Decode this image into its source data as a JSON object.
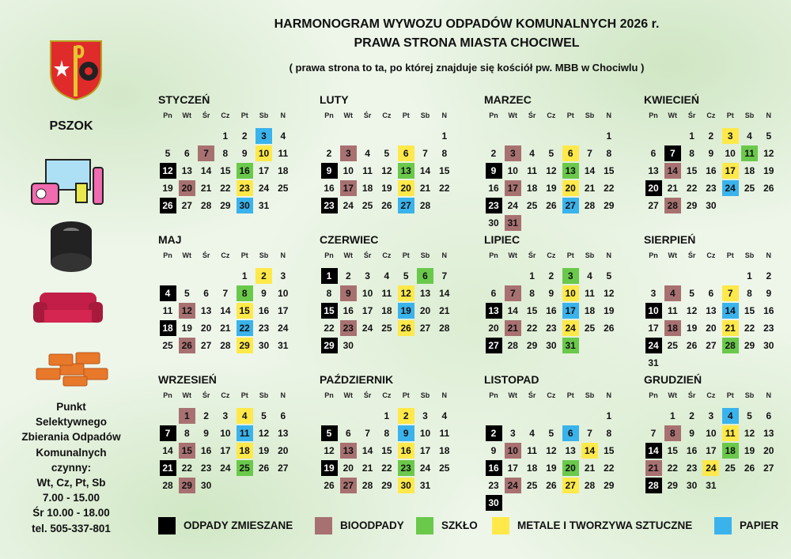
{
  "header": {
    "title": "HARMONOGRAM WYWOZU ODPADÓW KOMUNALNYCH 2026 r.",
    "subtitle": "PRAWA STRONA MIASTA CHOCIWEL",
    "note": "( prawa strona to ta, po której znajduje się kościół pw. MBB w Chociwlu )"
  },
  "pszok": {
    "title": "PSZOK",
    "info": [
      "Punkt",
      "Selektywnego",
      "Zbierania Odpadów",
      "Komunalnych",
      "czynny:",
      "Wt, Cz, Pt, Sb",
      "7.00 - 15.00",
      "Śr 10.00 - 18.00",
      "tel. 505-337-801"
    ]
  },
  "weekdays": [
    "Pn",
    "Wt",
    "Śr",
    "Cz",
    "Pt",
    "Sb",
    "N"
  ],
  "legend": [
    {
      "label": "ODPADY ZMIESZANE",
      "color": "#000000"
    },
    {
      "label": "BIOODPADY",
      "color": "#a87171"
    },
    {
      "label": "SZKŁO",
      "color": "#6ac94b"
    },
    {
      "label": "METALE I TWORZYWA SZTUCZNE",
      "color": "#ffe94a"
    },
    {
      "label": "PAPIER",
      "color": "#3ab3ec"
    }
  ],
  "months": [
    {
      "name": "STYCZEŃ",
      "weeks": [
        [
          null,
          null,
          null,
          1,
          2,
          {
            "day": 3,
            "type": 4
          },
          4
        ],
        [
          5,
          6,
          {
            "day": 7,
            "type": 1
          },
          8,
          9,
          {
            "day": 10,
            "type": 3
          },
          11
        ],
        [
          {
            "day": 12,
            "type": 0
          },
          13,
          14,
          15,
          {
            "day": 16,
            "type": 2
          },
          17,
          18
        ],
        [
          19,
          {
            "day": 20,
            "type": 1
          },
          21,
          22,
          {
            "day": 23,
            "type": 3
          },
          24,
          25
        ],
        [
          {
            "day": 26,
            "type": 0
          },
          27,
          28,
          29,
          {
            "day": 30,
            "type": 4
          },
          31
        ]
      ]
    },
    {
      "name": "LUTY",
      "weeks": [
        [
          null,
          null,
          null,
          null,
          null,
          null,
          1
        ],
        [
          2,
          {
            "day": 3,
            "type": 1
          },
          4,
          5,
          {
            "day": 6,
            "type": 3
          },
          7,
          8
        ],
        [
          {
            "day": 9,
            "type": 0
          },
          10,
          11,
          12,
          {
            "day": 13,
            "type": 2
          },
          14,
          15
        ],
        [
          16,
          {
            "day": 17,
            "type": 1
          },
          18,
          19,
          {
            "day": 20,
            "type": 3
          },
          21,
          22
        ],
        [
          {
            "day": 23,
            "type": 0
          },
          24,
          25,
          26,
          {
            "day": 27,
            "type": 4
          },
          28
        ]
      ]
    },
    {
      "name": "MARZEC",
      "weeks": [
        [
          null,
          null,
          null,
          null,
          null,
          null,
          1
        ],
        [
          2,
          {
            "day": 3,
            "type": 1
          },
          4,
          5,
          {
            "day": 6,
            "type": 3
          },
          7,
          8
        ],
        [
          {
            "day": 9,
            "type": 0
          },
          10,
          11,
          12,
          {
            "day": 13,
            "type": 2
          },
          14,
          15
        ],
        [
          16,
          {
            "day": 17,
            "type": 1
          },
          18,
          19,
          {
            "day": 20,
            "type": 3
          },
          21,
          22
        ],
        [
          {
            "day": 23,
            "type": 0
          },
          24,
          25,
          26,
          {
            "day": 27,
            "type": 4
          },
          28,
          29
        ],
        [
          30,
          {
            "day": 31,
            "type": 1
          }
        ]
      ]
    },
    {
      "name": "KWIECIEŃ",
      "weeks": [
        [
          null,
          null,
          1,
          2,
          {
            "day": 3,
            "type": 3
          },
          4,
          5
        ],
        [
          6,
          {
            "day": 7,
            "type": 0
          },
          8,
          9,
          10,
          {
            "day": 11,
            "type": 2
          },
          12
        ],
        [
          13,
          {
            "day": 14,
            "type": 1
          },
          15,
          16,
          {
            "day": 17,
            "type": 3
          },
          18,
          19
        ],
        [
          {
            "day": 20,
            "type": 0
          },
          21,
          22,
          23,
          {
            "day": 24,
            "type": 4
          },
          25,
          26
        ],
        [
          27,
          {
            "day": 28,
            "type": 1
          },
          29,
          30
        ]
      ]
    },
    {
      "name": "MAJ",
      "weeks": [
        [
          null,
          null,
          null,
          null,
          1,
          {
            "day": 2,
            "type": 3
          },
          3
        ],
        [
          {
            "day": 4,
            "type": 0
          },
          5,
          6,
          7,
          {
            "day": 8,
            "type": 2
          },
          9,
          10
        ],
        [
          11,
          {
            "day": 12,
            "type": 1
          },
          13,
          14,
          {
            "day": 15,
            "type": 3
          },
          16,
          17
        ],
        [
          {
            "day": 18,
            "type": 0
          },
          19,
          20,
          21,
          {
            "day": 22,
            "type": 4
          },
          23,
          24
        ],
        [
          25,
          {
            "day": 26,
            "type": 1
          },
          27,
          28,
          {
            "day": 29,
            "type": 3
          },
          30,
          31
        ]
      ]
    },
    {
      "name": "CZERWIEC",
      "weeks": [
        [
          {
            "day": 1,
            "type": 0
          },
          2,
          3,
          4,
          5,
          {
            "day": 6,
            "type": 2
          },
          7
        ],
        [
          8,
          {
            "day": 9,
            "type": 1
          },
          10,
          11,
          {
            "day": 12,
            "type": 3
          },
          13,
          14
        ],
        [
          {
            "day": 15,
            "type": 0
          },
          16,
          17,
          18,
          {
            "day": 19,
            "type": 4
          },
          20,
          21
        ],
        [
          22,
          {
            "day": 23,
            "type": 1
          },
          24,
          25,
          {
            "day": 26,
            "type": 3
          },
          27,
          28
        ],
        [
          {
            "day": 29,
            "type": 0
          },
          30
        ]
      ]
    },
    {
      "name": "LIPIEC",
      "weeks": [
        [
          null,
          null,
          1,
          2,
          {
            "day": 3,
            "type": 2
          },
          4,
          5
        ],
        [
          6,
          {
            "day": 7,
            "type": 1
          },
          8,
          9,
          {
            "day": 10,
            "type": 3
          },
          11,
          12
        ],
        [
          {
            "day": 13,
            "type": 0
          },
          14,
          15,
          16,
          {
            "day": 17,
            "type": 4
          },
          18,
          19
        ],
        [
          20,
          {
            "day": 21,
            "type": 1
          },
          22,
          23,
          {
            "day": 24,
            "type": 3
          },
          25,
          26
        ],
        [
          {
            "day": 27,
            "type": 0
          },
          28,
          29,
          30,
          {
            "day": 31,
            "type": 2
          }
        ]
      ]
    },
    {
      "name": "SIERPIEŃ",
      "weeks": [
        [
          null,
          null,
          null,
          null,
          null,
          1,
          2
        ],
        [
          3,
          {
            "day": 4,
            "type": 1
          },
          5,
          6,
          {
            "day": 7,
            "type": 3
          },
          8,
          9
        ],
        [
          {
            "day": 10,
            "type": 0
          },
          11,
          12,
          13,
          {
            "day": 14,
            "type": 4
          },
          15,
          16
        ],
        [
          17,
          {
            "day": 18,
            "type": 1
          },
          19,
          20,
          {
            "day": 21,
            "type": 3
          },
          22,
          23
        ],
        [
          {
            "day": 24,
            "type": 0
          },
          25,
          26,
          27,
          {
            "day": 28,
            "type": 2
          },
          29,
          30
        ],
        [
          31
        ]
      ]
    },
    {
      "name": "WRZESIEŃ",
      "weeks": [
        [
          null,
          {
            "day": 1,
            "type": 1
          },
          2,
          3,
          {
            "day": 4,
            "type": 3
          },
          5,
          6
        ],
        [
          {
            "day": 7,
            "type": 0
          },
          8,
          9,
          10,
          {
            "day": 11,
            "type": 4
          },
          12,
          13
        ],
        [
          14,
          {
            "day": 15,
            "type": 1
          },
          16,
          17,
          {
            "day": 18,
            "type": 3
          },
          19,
          20
        ],
        [
          {
            "day": 21,
            "type": 0
          },
          22,
          23,
          24,
          {
            "day": 25,
            "type": 2
          },
          26,
          27
        ],
        [
          28,
          {
            "day": 29,
            "type": 1
          },
          30
        ]
      ]
    },
    {
      "name": "PAŹDZIERNIK",
      "weeks": [
        [
          null,
          null,
          null,
          1,
          {
            "day": 2,
            "type": 3
          },
          3,
          4
        ],
        [
          {
            "day": 5,
            "type": 0
          },
          6,
          7,
          8,
          {
            "day": 9,
            "type": 4
          },
          10,
          11
        ],
        [
          12,
          {
            "day": 13,
            "type": 1
          },
          14,
          15,
          {
            "day": 16,
            "type": 3
          },
          17,
          18
        ],
        [
          {
            "day": 19,
            "type": 0
          },
          20,
          21,
          22,
          {
            "day": 23,
            "type": 2
          },
          24,
          25
        ],
        [
          26,
          {
            "day": 27,
            "type": 1
          },
          28,
          29,
          {
            "day": 30,
            "type": 3
          },
          31
        ]
      ]
    },
    {
      "name": "LISTOPAD",
      "weeks": [
        [
          null,
          null,
          null,
          null,
          null,
          null,
          1
        ],
        [
          {
            "day": 2,
            "type": 0
          },
          3,
          4,
          5,
          {
            "day": 6,
            "type": 4
          },
          7,
          8
        ],
        [
          9,
          {
            "day": 10,
            "type": 1
          },
          11,
          12,
          13,
          {
            "day": 14,
            "type": 3
          },
          15
        ],
        [
          {
            "day": 16,
            "type": 0
          },
          17,
          18,
          19,
          {
            "day": 20,
            "type": 2
          },
          21,
          22
        ],
        [
          23,
          {
            "day": 24,
            "type": 1
          },
          25,
          26,
          {
            "day": 27,
            "type": 3
          },
          28,
          29
        ],
        [
          {
            "day": 30,
            "type": 0
          }
        ]
      ]
    },
    {
      "name": "GRUDZIEŃ",
      "weeks": [
        [
          null,
          1,
          2,
          3,
          {
            "day": 4,
            "type": 4
          },
          5,
          6
        ],
        [
          7,
          {
            "day": 8,
            "type": 1
          },
          9,
          10,
          {
            "day": 11,
            "type": 3
          },
          12,
          13
        ],
        [
          {
            "day": 14,
            "type": 0
          },
          15,
          16,
          17,
          {
            "day": 18,
            "type": 2
          },
          19,
          20
        ],
        [
          {
            "day": 21,
            "type": 1
          },
          22,
          23,
          {
            "day": 24,
            "type": 3
          },
          25,
          26,
          27
        ],
        [
          {
            "day": 28,
            "type": 0
          },
          29,
          30,
          31
        ]
      ]
    }
  ]
}
